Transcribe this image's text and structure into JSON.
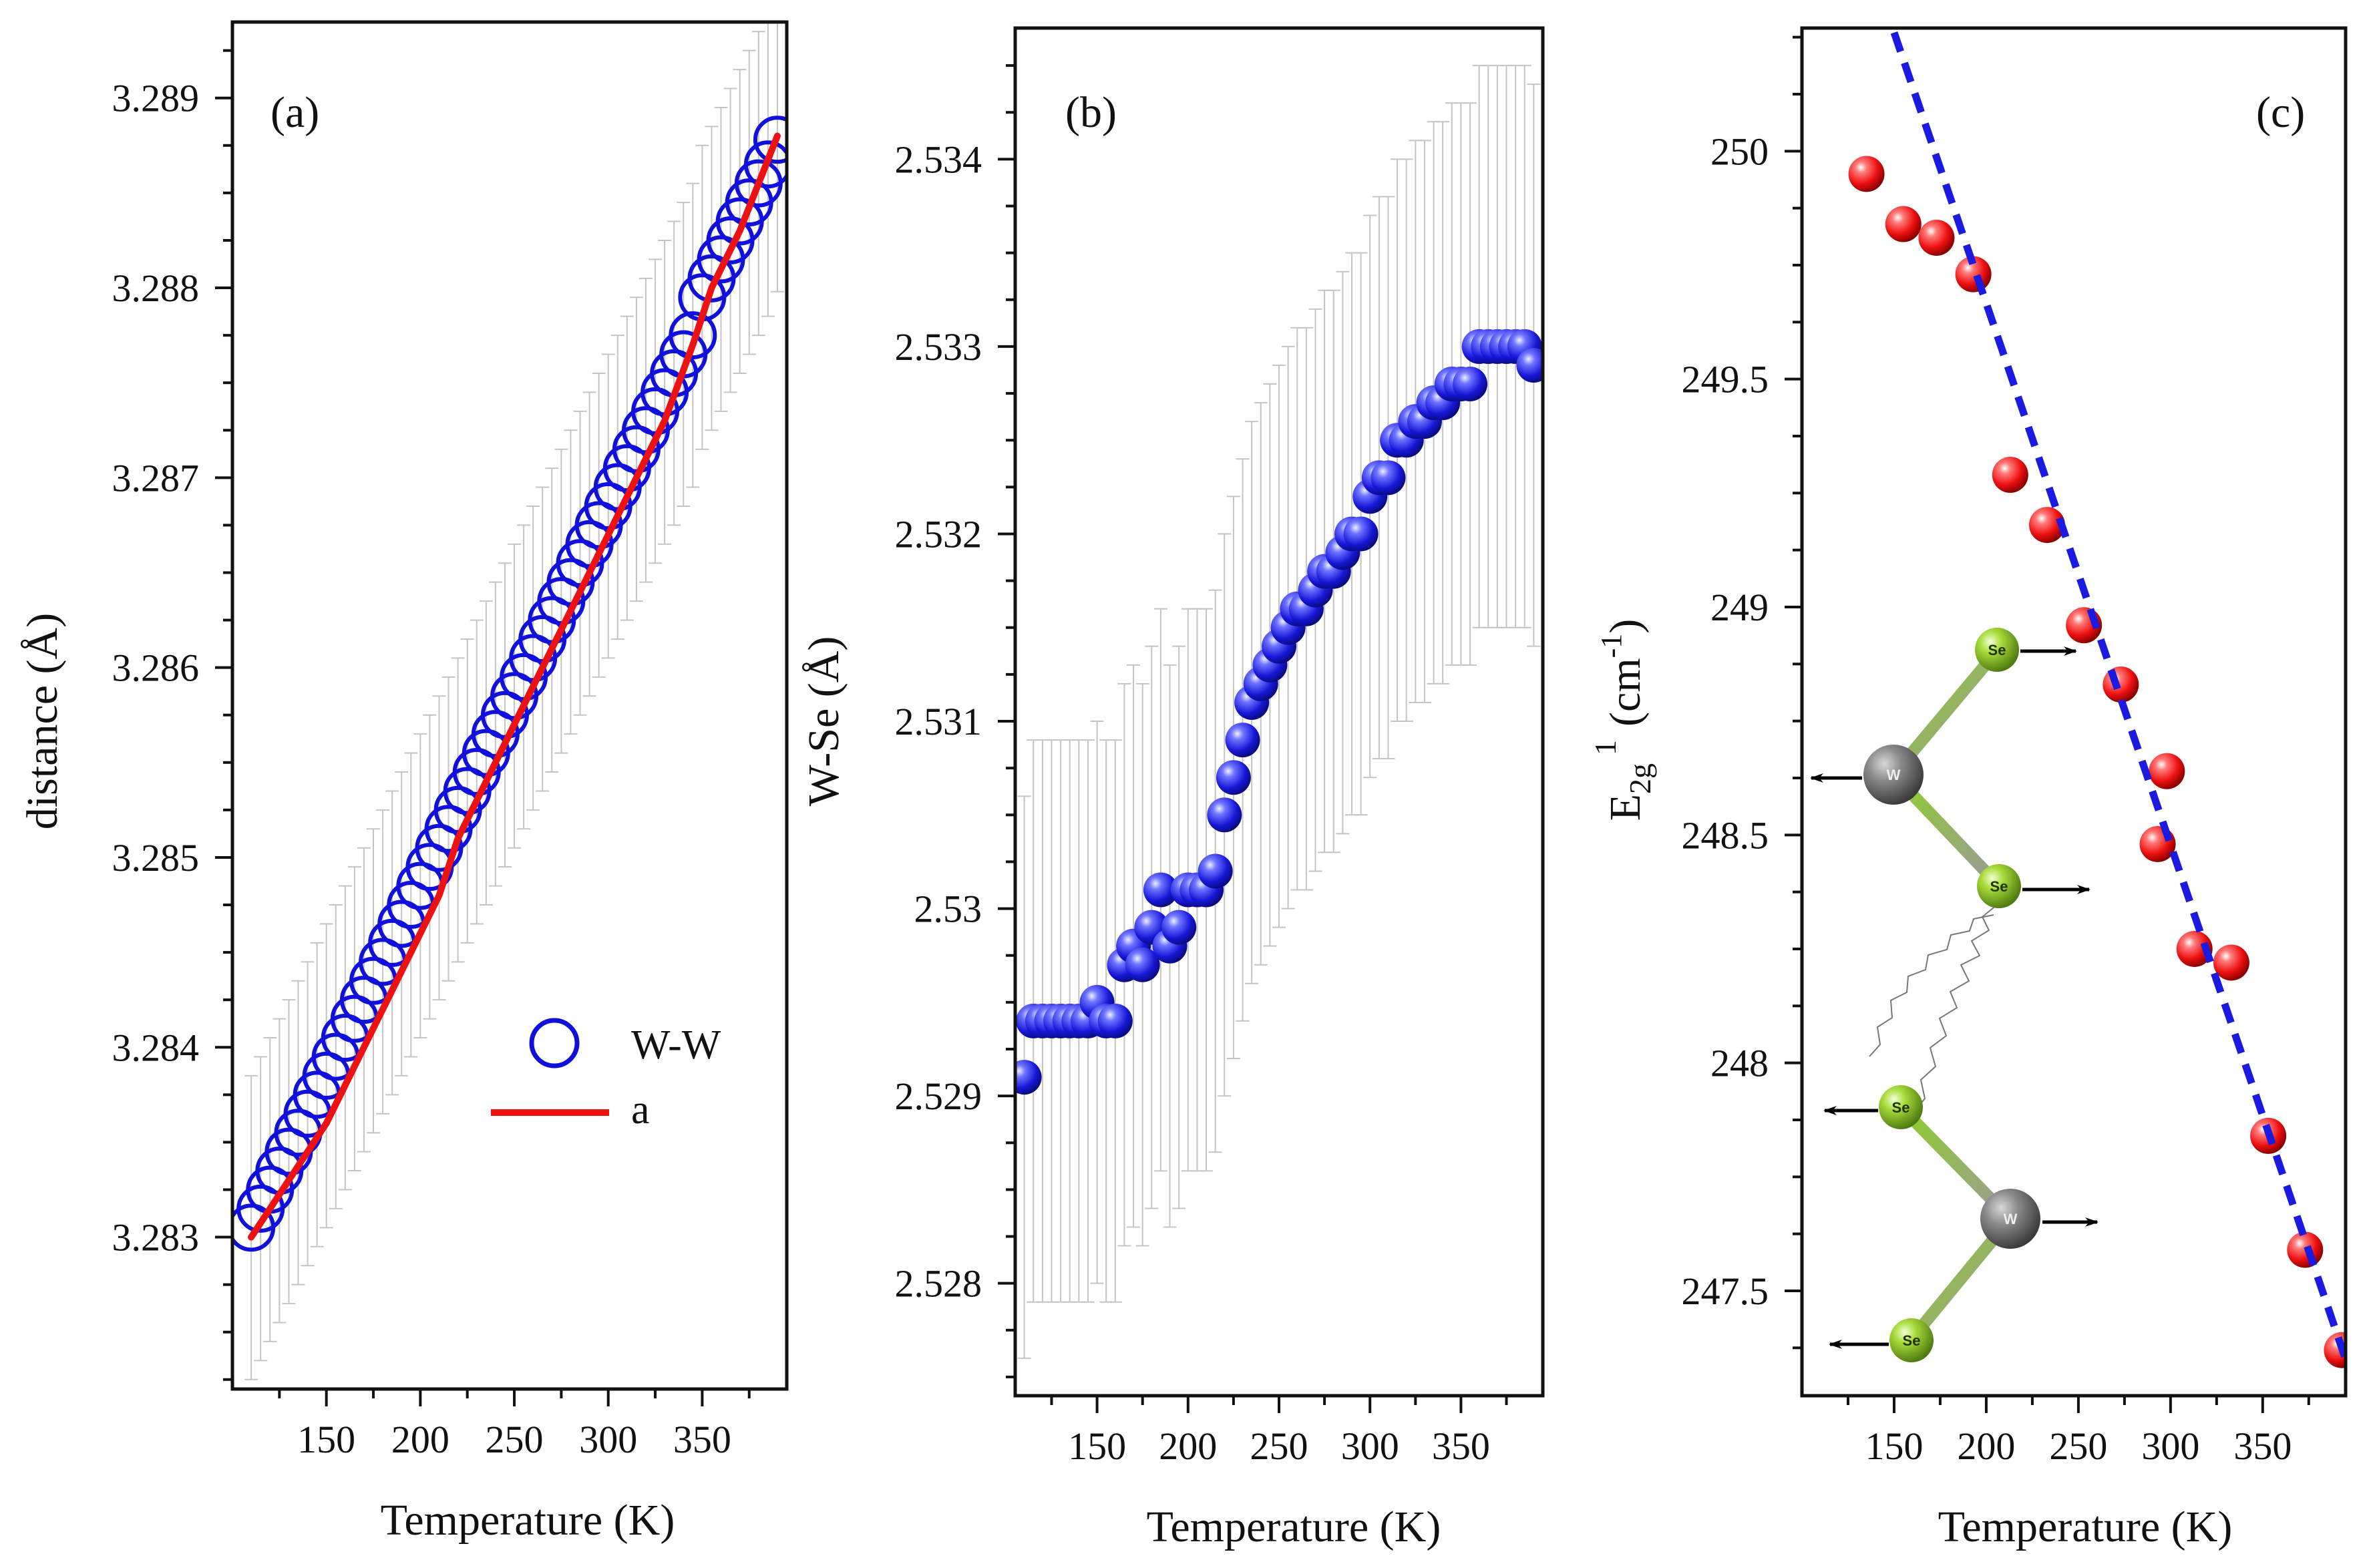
{
  "chart_data": [
    {
      "type": "scatter",
      "panel_label": "(a)",
      "title": "",
      "xlabel": "Temperature (K)",
      "ylabel": "distance (Å)",
      "xlim": [
        100,
        395
      ],
      "ylim": [
        3.2822,
        3.2894
      ],
      "xticks": [
        150,
        200,
        250,
        300,
        350
      ],
      "xtick_labels": [
        "150",
        "200",
        "250",
        "300",
        "350"
      ],
      "yticks": [
        3.283,
        3.284,
        3.285,
        3.286,
        3.287,
        3.288,
        3.289
      ],
      "ytick_labels": [
        "3.283",
        "3.284",
        "3.285",
        "3.286",
        "3.287",
        "3.288",
        "3.289"
      ],
      "legend": [
        {
          "label": "W-W",
          "marker": "open-circle",
          "color": "#1010dd"
        },
        {
          "label": "a",
          "marker": "line",
          "color": "#ee1111"
        }
      ],
      "series": [
        {
          "name": "W-W",
          "color": "#1010dd",
          "style": "open-circle",
          "error": 0.0008,
          "x": [
            110,
            115,
            120,
            125,
            130,
            135,
            140,
            145,
            150,
            155,
            160,
            165,
            170,
            175,
            180,
            185,
            190,
            195,
            200,
            205,
            210,
            215,
            220,
            225,
            230,
            235,
            240,
            245,
            250,
            255,
            260,
            265,
            270,
            275,
            280,
            285,
            290,
            295,
            300,
            305,
            310,
            315,
            320,
            325,
            330,
            335,
            340,
            345,
            350,
            355,
            360,
            365,
            370,
            375,
            380,
            385,
            390
          ],
          "y": [
            3.28305,
            3.28315,
            3.28325,
            3.28335,
            3.28345,
            3.28355,
            3.28365,
            3.28375,
            3.28385,
            3.28395,
            3.28405,
            3.28415,
            3.28425,
            3.28435,
            3.28445,
            3.28455,
            3.28465,
            3.28475,
            3.28485,
            3.28495,
            3.28505,
            3.28515,
            3.28525,
            3.28535,
            3.28545,
            3.28555,
            3.28565,
            3.28575,
            3.28585,
            3.28595,
            3.28605,
            3.28615,
            3.28625,
            3.28635,
            3.28645,
            3.28655,
            3.28665,
            3.28675,
            3.28685,
            3.28695,
            3.28705,
            3.28715,
            3.28725,
            3.28735,
            3.28745,
            3.28755,
            3.28765,
            3.28775,
            3.28795,
            3.28805,
            3.28815,
            3.28825,
            3.28835,
            3.28845,
            3.28855,
            3.28865,
            3.28878
          ]
        },
        {
          "name": "a",
          "color": "#ee1111",
          "style": "line",
          "x": [
            110,
            130,
            150,
            170,
            190,
            210,
            220,
            230,
            250,
            270,
            290,
            310,
            330,
            345,
            355,
            370,
            390
          ],
          "y": [
            3.283,
            3.2833,
            3.2836,
            3.284,
            3.2844,
            3.2848,
            3.2851,
            3.2853,
            3.2857,
            3.2861,
            3.2865,
            3.2869,
            3.2873,
            3.2877,
            3.288,
            3.2883,
            3.2888
          ]
        }
      ]
    },
    {
      "type": "scatter",
      "panel_label": "(b)",
      "title": "",
      "xlabel": "Temperature (K)",
      "ylabel": "W-Se (Å)",
      "xlim": [
        105,
        395
      ],
      "ylim": [
        2.5274,
        2.5347
      ],
      "xticks": [
        150,
        200,
        250,
        300,
        350
      ],
      "xtick_labels": [
        "150",
        "200",
        "250",
        "300",
        "350"
      ],
      "yticks": [
        2.528,
        2.529,
        2.53,
        2.531,
        2.532,
        2.533,
        2.534
      ],
      "ytick_labels": [
        "2.528",
        "2.529",
        "2.53",
        "2.531",
        "2.532",
        "2.533",
        "2.534"
      ],
      "series": [
        {
          "name": "W-Se",
          "color": "#1a1ae0",
          "style": "filled-sphere",
          "error": 0.0015,
          "x": [
            110,
            115,
            120,
            125,
            130,
            135,
            140,
            145,
            150,
            155,
            160,
            165,
            170,
            175,
            180,
            185,
            190,
            195,
            200,
            205,
            210,
            215,
            220,
            225,
            230,
            235,
            240,
            245,
            250,
            255,
            260,
            265,
            270,
            275,
            280,
            285,
            290,
            295,
            300,
            305,
            310,
            315,
            320,
            325,
            330,
            335,
            340,
            345,
            350,
            355,
            360,
            365,
            370,
            375,
            380,
            385,
            390
          ],
          "y": [
            2.5291,
            2.5294,
            2.5294,
            2.5294,
            2.5294,
            2.5294,
            2.5294,
            2.5294,
            2.5295,
            2.5294,
            2.5294,
            2.5297,
            2.5298,
            2.5297,
            2.5299,
            2.5301,
            2.5298,
            2.5299,
            2.5301,
            2.5301,
            2.5301,
            2.5302,
            2.5305,
            2.5307,
            2.5309,
            2.5311,
            2.5312,
            2.5313,
            2.5314,
            2.5315,
            2.5316,
            2.5316,
            2.5317,
            2.5318,
            2.5318,
            2.5319,
            2.532,
            2.532,
            2.5322,
            2.5323,
            2.5323,
            2.5325,
            2.5325,
            2.5326,
            2.5326,
            2.5327,
            2.5327,
            2.5328,
            2.5328,
            2.5328,
            2.533,
            2.533,
            2.533,
            2.533,
            2.533,
            2.533,
            2.5329
          ]
        }
      ]
    },
    {
      "type": "scatter",
      "panel_label": "(c)",
      "title": "",
      "xlabel": "Temperature (K)",
      "ylabel": "E2g1 (cm-1)",
      "ylabel_main": "E",
      "ylabel_sub": "2g",
      "ylabel_sup": "1",
      "ylabel_unit": "(cm",
      "ylabel_unit_sup": "-1",
      "ylabel_close": ")",
      "xlim": [
        100,
        395
      ],
      "ylim": [
        247.27,
        250.27
      ],
      "xticks": [
        150,
        200,
        250,
        300,
        350
      ],
      "xtick_labels": [
        "150",
        "200",
        "250",
        "300",
        "350"
      ],
      "yticks": [
        247.5,
        248,
        248.5,
        249,
        249.5,
        250
      ],
      "ytick_labels": [
        "247.5",
        "248",
        "248.5",
        "249",
        "249.5",
        "250"
      ],
      "series": [
        {
          "name": "E2g1",
          "color": "#ee1111",
          "style": "filled-sphere",
          "x": [
            135,
            155,
            173,
            193,
            213,
            233,
            253,
            273,
            293,
            298,
            313,
            333,
            353,
            373,
            393
          ],
          "y": [
            249.95,
            249.84,
            249.81,
            249.73,
            249.29,
            249.18,
            248.96,
            248.83,
            248.48,
            248.64,
            248.25,
            248.22,
            247.84,
            247.59,
            247.37
          ]
        },
        {
          "name": "linear fit",
          "color": "#1a1ae0",
          "style": "dashed",
          "x": [
            150,
            395
          ],
          "y": [
            250.26,
            247.35
          ]
        }
      ],
      "inset": {
        "description": "E2g1 vibrational mode schematic",
        "atoms": [
          {
            "label": "Se",
            "type": "Se",
            "arrow": "right"
          },
          {
            "label": "W",
            "type": "W",
            "arrow": "left"
          },
          {
            "label": "Se",
            "type": "Se",
            "arrow": "right"
          },
          {
            "label": "Se",
            "type": "Se",
            "arrow": "left"
          },
          {
            "label": "W",
            "type": "W",
            "arrow": "right"
          },
          {
            "label": "Se",
            "type": "Se",
            "arrow": "left"
          }
        ]
      }
    }
  ]
}
